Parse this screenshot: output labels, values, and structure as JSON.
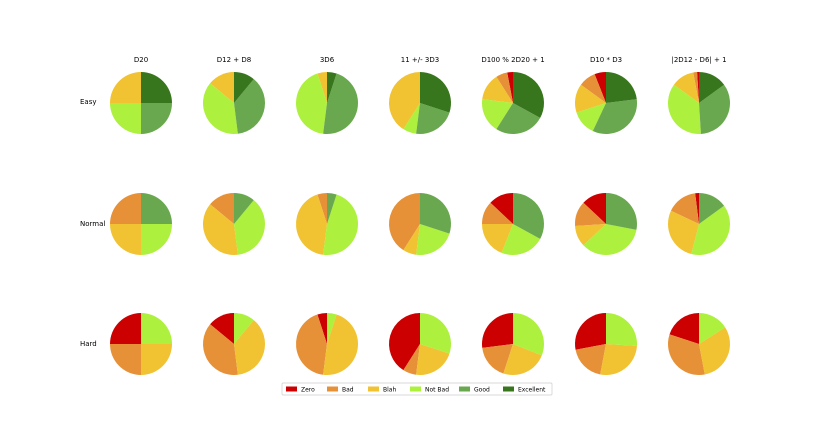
{
  "colors": {
    "Zero": "#cc0000",
    "Bad": "#e69138",
    "Blah": "#f1c232",
    "Not Bad": "#adf03e",
    "Good": "#6aa84f",
    "Excellent": "#38761d"
  },
  "chart_data": {
    "type": "pie",
    "layout": "grid 3 rows x 7 columns",
    "columns": [
      "D20",
      "D12 + D8",
      "3D6",
      "11 +/- 3D3",
      "D100 % 2D20 + 1",
      "D10 * D3",
      "|2D12 - D6| + 1"
    ],
    "rows": [
      "Easy",
      "Normal",
      "Hard"
    ],
    "categories": [
      "Zero",
      "Bad",
      "Blah",
      "Not Bad",
      "Good",
      "Excellent"
    ],
    "legend": {
      "placement": "bottom-center",
      "entries": [
        "Zero",
        "Bad",
        "Blah",
        "Not Bad",
        "Good",
        "Excellent"
      ]
    },
    "values": [
      [
        [
          0,
          0,
          25,
          25,
          25,
          25
        ],
        [
          0,
          0,
          14,
          38,
          37,
          11
        ],
        [
          0,
          0,
          5,
          43,
          47,
          5
        ],
        [
          0,
          0,
          41,
          7,
          22,
          30
        ],
        [
          3,
          6,
          14,
          18,
          26,
          33
        ],
        [
          6,
          9,
          15,
          13,
          34,
          23
        ],
        [
          1,
          2,
          12,
          36,
          34,
          15
        ]
      ],
      [
        [
          0,
          25,
          25,
          25,
          25,
          0
        ],
        [
          0,
          14,
          38,
          37,
          11,
          0
        ],
        [
          0,
          5,
          43,
          47,
          5,
          0
        ],
        [
          0,
          41,
          7,
          22,
          30,
          0
        ],
        [
          13,
          12,
          19,
          23,
          33,
          0
        ],
        [
          13,
          13,
          11,
          35,
          28,
          0
        ],
        [
          2,
          16,
          28,
          39,
          15,
          0
        ]
      ],
      [
        [
          25,
          25,
          25,
          25,
          0,
          0
        ],
        [
          14,
          38,
          37,
          11,
          0,
          0
        ],
        [
          5,
          43,
          47,
          5,
          0,
          0
        ],
        [
          41,
          7,
          22,
          30,
          0,
          0
        ],
        [
          27,
          18,
          24,
          31,
          0,
          0
        ],
        [
          28,
          19,
          27,
          26,
          0,
          0
        ],
        [
          20,
          33,
          31,
          16,
          0,
          0
        ]
      ]
    ]
  }
}
